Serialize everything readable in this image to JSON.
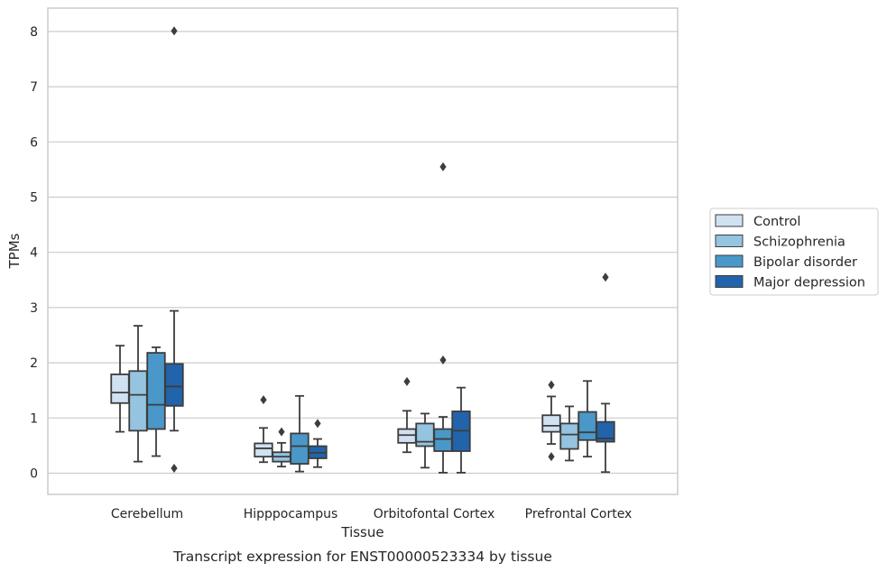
{
  "chart_data": {
    "type": "box",
    "title": "",
    "caption": "Transcript expression for ENST00000523334 by tissue",
    "xlabel": "Tissue",
    "ylabel": "TPMs",
    "ylim": [
      -0.4,
      8.4
    ],
    "yticks": [
      0,
      1,
      2,
      3,
      4,
      5,
      6,
      7,
      8
    ],
    "grid": "horizontal",
    "legend_position": "right",
    "categories": [
      "Cerebellum",
      "Hipppocampus",
      "Orbitofontal Cortex",
      "Prefrontal Cortex"
    ],
    "series": [
      {
        "name": "Control",
        "color": "#d0e1f2",
        "boxes": [
          {
            "whislo": 0.75,
            "q1": 1.27,
            "med": 1.46,
            "q3": 1.79,
            "whishi": 2.31,
            "fliers": []
          },
          {
            "whislo": 0.2,
            "q1": 0.3,
            "med": 0.45,
            "q3": 0.54,
            "whishi": 0.82,
            "fliers": [
              1.33
            ]
          },
          {
            "whislo": 0.38,
            "q1": 0.55,
            "med": 0.69,
            "q3": 0.8,
            "whishi": 1.13,
            "fliers": [
              1.66
            ]
          },
          {
            "whislo": 0.53,
            "q1": 0.75,
            "med": 0.86,
            "q3": 1.05,
            "whishi": 1.39,
            "fliers": [
              1.6,
              0.3
            ]
          }
        ]
      },
      {
        "name": "Schizophrenia",
        "color": "#94c4df",
        "boxes": [
          {
            "whislo": 0.21,
            "q1": 0.77,
            "med": 1.42,
            "q3": 1.85,
            "whishi": 2.67,
            "fliers": []
          },
          {
            "whislo": 0.12,
            "q1": 0.21,
            "med": 0.3,
            "q3": 0.38,
            "whishi": 0.55,
            "fliers": [
              0.75
            ]
          },
          {
            "whislo": 0.1,
            "q1": 0.49,
            "med": 0.57,
            "q3": 0.9,
            "whishi": 1.08,
            "fliers": []
          },
          {
            "whislo": 0.23,
            "q1": 0.44,
            "med": 0.7,
            "q3": 0.9,
            "whishi": 1.21,
            "fliers": []
          }
        ]
      },
      {
        "name": "Bipolar disorder",
        "color": "#4a98c9",
        "boxes": [
          {
            "whislo": 0.31,
            "q1": 0.8,
            "med": 1.24,
            "q3": 2.18,
            "whishi": 2.28,
            "fliers": []
          },
          {
            "whislo": 0.03,
            "q1": 0.17,
            "med": 0.49,
            "q3": 0.72,
            "whishi": 1.4,
            "fliers": []
          },
          {
            "whislo": 0.01,
            "q1": 0.4,
            "med": 0.62,
            "q3": 0.8,
            "whishi": 1.02,
            "fliers": [
              2.05,
              5.55
            ]
          },
          {
            "whislo": 0.3,
            "q1": 0.6,
            "med": 0.74,
            "q3": 1.11,
            "whishi": 1.67,
            "fliers": []
          }
        ]
      },
      {
        "name": "Major depression",
        "color": "#2164ab",
        "boxes": [
          {
            "whislo": 0.77,
            "q1": 1.22,
            "med": 1.57,
            "q3": 1.98,
            "whishi": 2.94,
            "fliers": [
              0.09,
              8.01
            ]
          },
          {
            "whislo": 0.11,
            "q1": 0.27,
            "med": 0.37,
            "q3": 0.49,
            "whishi": 0.62,
            "fliers": [
              0.9
            ]
          },
          {
            "whislo": 0.01,
            "q1": 0.4,
            "med": 0.77,
            "q3": 1.12,
            "whishi": 1.55,
            "fliers": []
          },
          {
            "whislo": 0.02,
            "q1": 0.57,
            "med": 0.63,
            "q3": 0.93,
            "whishi": 1.26,
            "fliers": [
              3.55
            ]
          }
        ]
      }
    ]
  },
  "colors": {
    "grid": "#cccccc",
    "spine": "#cccccc",
    "box_edge": "#3d3d3d",
    "text": "#262626"
  }
}
